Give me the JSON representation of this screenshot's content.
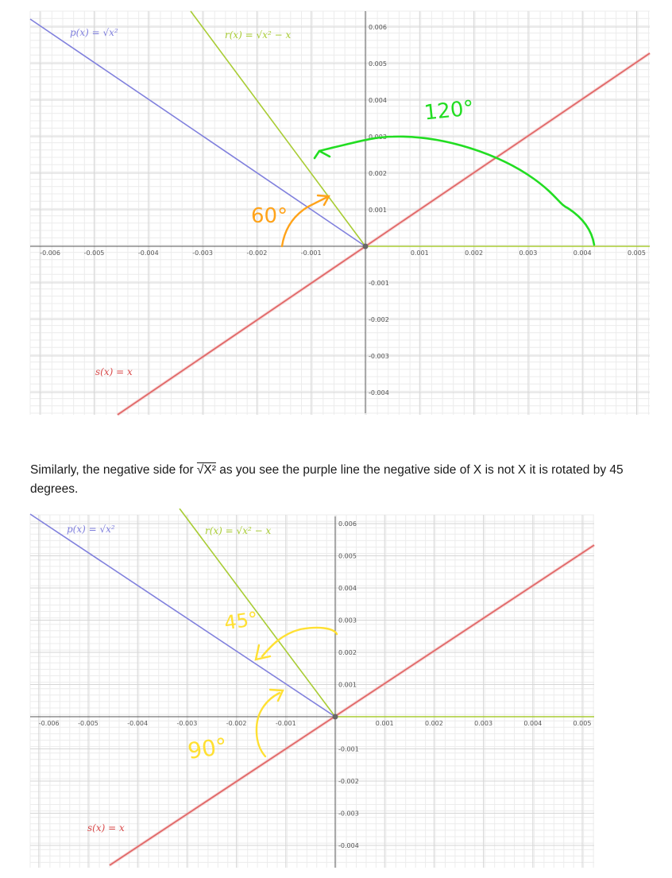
{
  "graphs": [
    {
      "x_ticks": [
        "-0.006",
        "-0.005",
        "-0.004",
        "-0.003",
        "-0.002",
        "-0.001",
        "0.001",
        "0.002",
        "0.003",
        "0.004",
        "0.005"
      ],
      "y_ticks": [
        "0.006",
        "0.005",
        "0.004",
        "0.003",
        "0.002",
        "0.001",
        "-0.001",
        "-0.002",
        "-0.003",
        "-0.004"
      ],
      "labels": {
        "p": "p(x)  =  √x²",
        "r": "r(x)  =  √x² − x",
        "s": "s(x)  =  x"
      },
      "annotations": [
        {
          "text": "120°",
          "color": "#22dd22"
        },
        {
          "text": "60°",
          "color": "#ffa31a"
        }
      ]
    },
    {
      "x_ticks": [
        "-0.006",
        "-0.005",
        "-0.004",
        "-0.003",
        "-0.002",
        "-0.001",
        "0.001",
        "0.002",
        "0.003",
        "0.004",
        "0.005"
      ],
      "y_ticks": [
        "0.006",
        "0.005",
        "0.004",
        "0.003",
        "0.002",
        "0.001",
        "-0.001",
        "-0.002",
        "-0.003",
        "-0.004"
      ],
      "labels": {
        "p": "p(x)  =  √x²",
        "r": "r(x)  =  √x² − x",
        "s": "s(x)  =  x"
      },
      "annotations": [
        {
          "text": "45°",
          "color": "#ffe033"
        },
        {
          "text": "90°",
          "color": "#ffe033"
        }
      ]
    }
  ],
  "colors": {
    "p_line": "#8080dd",
    "r_line": "#a8cc33",
    "s_line": "#d94a4a",
    "green": "#22dd22",
    "orange": "#ffa31a",
    "yellow": "#ffe033"
  },
  "paragraph": {
    "before": "Similarly, the negative side for ",
    "radical": "√X²",
    "after": " as you see the purple line the negative side of X is not X it is rotated by 45 degrees."
  }
}
